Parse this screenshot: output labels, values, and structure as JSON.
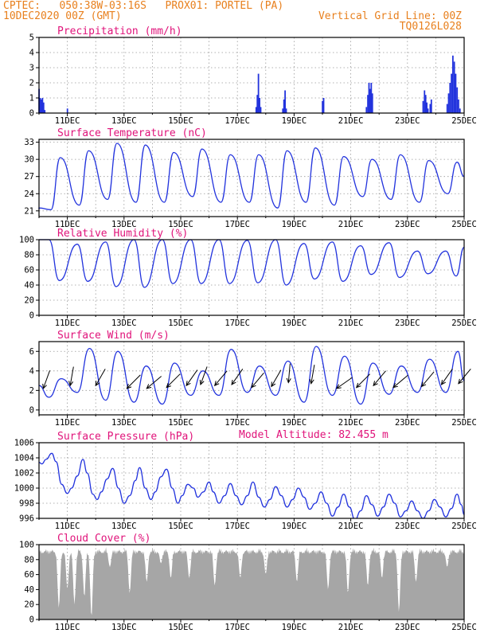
{
  "header": {
    "line1_left": "CPTEC:   050:38W-03:16S   PROX01: PORTEL (PA)",
    "line2_left": "10DEC2020 00Z (GMT)",
    "line2_right": "Vertical Grid Line: 00Z",
    "line3_right": "TQ0126L028"
  },
  "colors": {
    "header": "#e8801e",
    "title": "#e0137a",
    "series": "#2233dd",
    "cloud": "#a6a6a6",
    "arrow": "#000000",
    "grid": "#999999"
  },
  "x_axis": {
    "start": "10DEC2020 00Z",
    "end": "25DEC2020 00Z",
    "tick_labels": [
      "11DEC",
      "13DEC",
      "15DEC",
      "17DEC",
      "19DEC",
      "21DEC",
      "23DEC",
      "25DEC"
    ],
    "tick_days": [
      1,
      3,
      5,
      7,
      9,
      11,
      13,
      15
    ],
    "vertical_grid": "00Z each day"
  },
  "chart_data": [
    {
      "type": "bar",
      "id": "precip",
      "title": "Precipitation (mm/h)",
      "ylim": [
        0,
        5
      ],
      "yticks": [
        0,
        1,
        2,
        3,
        4,
        5
      ],
      "grid": true,
      "bars": [
        {
          "day": 0.0,
          "value": 1.6
        },
        {
          "day": 0.04,
          "value": 1.0
        },
        {
          "day": 0.08,
          "value": 0.9
        },
        {
          "day": 0.12,
          "value": 1.0
        },
        {
          "day": 0.16,
          "value": 0.7
        },
        {
          "day": 0.2,
          "value": 0.2
        },
        {
          "day": 1.0,
          "value": 0.3
        },
        {
          "day": 7.66,
          "value": 0.4
        },
        {
          "day": 7.7,
          "value": 1.2
        },
        {
          "day": 7.74,
          "value": 2.6
        },
        {
          "day": 7.78,
          "value": 1.0
        },
        {
          "day": 7.82,
          "value": 0.4
        },
        {
          "day": 8.6,
          "value": 0.3
        },
        {
          "day": 8.64,
          "value": 0.9
        },
        {
          "day": 8.68,
          "value": 1.5
        },
        {
          "day": 8.72,
          "value": 0.3
        },
        {
          "day": 10.0,
          "value": 0.8
        },
        {
          "day": 10.04,
          "value": 1.0
        },
        {
          "day": 11.55,
          "value": 0.4
        },
        {
          "day": 11.6,
          "value": 1.2
        },
        {
          "day": 11.64,
          "value": 2.0
        },
        {
          "day": 11.68,
          "value": 1.6
        },
        {
          "day": 11.72,
          "value": 2.0
        },
        {
          "day": 11.76,
          "value": 1.3
        },
        {
          "day": 13.55,
          "value": 0.8
        },
        {
          "day": 13.6,
          "value": 1.5
        },
        {
          "day": 13.64,
          "value": 1.2
        },
        {
          "day": 13.68,
          "value": 0.7
        },
        {
          "day": 13.72,
          "value": 0.3
        },
        {
          "day": 13.8,
          "value": 0.6
        },
        {
          "day": 13.84,
          "value": 0.9
        },
        {
          "day": 14.4,
          "value": 0.6
        },
        {
          "day": 14.45,
          "value": 1.3
        },
        {
          "day": 14.5,
          "value": 2.0
        },
        {
          "day": 14.55,
          "value": 2.6
        },
        {
          "day": 14.6,
          "value": 3.8
        },
        {
          "day": 14.65,
          "value": 3.4
        },
        {
          "day": 14.7,
          "value": 2.6
        },
        {
          "day": 14.75,
          "value": 1.7
        },
        {
          "day": 14.8,
          "value": 0.9
        },
        {
          "day": 14.85,
          "value": 0.3
        }
      ]
    },
    {
      "type": "line",
      "id": "temp",
      "title": "Surface Temperature (nC)",
      "ylim": [
        20,
        33.5
      ],
      "yticks": [
        21,
        24,
        27,
        30,
        33
      ],
      "grid": true,
      "daily_min": [
        21.2,
        22.0,
        23.0,
        22.5,
        22.5,
        23.5,
        22.5,
        22.5,
        21.5,
        22.5,
        22.0,
        23.5,
        23.0,
        22.5,
        24.0
      ],
      "daily_max": [
        30.3,
        31.5,
        32.8,
        32.5,
        31.2,
        31.8,
        30.8,
        30.8,
        31.5,
        32.0,
        30.5,
        30.0,
        30.8,
        29.8,
        29.5
      ],
      "end_value": 27.0,
      "points": []
    },
    {
      "type": "line",
      "id": "rh",
      "title": "Relative Humidity (%)",
      "ylim": [
        0,
        100
      ],
      "yticks": [
        0,
        20,
        40,
        60,
        80,
        100
      ],
      "grid": true,
      "daily_max": [
        100,
        94,
        97,
        100,
        100,
        100,
        100,
        99,
        100,
        95,
        97,
        92,
        96,
        85,
        85
      ],
      "daily_min": [
        46,
        45,
        38,
        37,
        42,
        42,
        42,
        43,
        40,
        48,
        45,
        54,
        50,
        55,
        52
      ],
      "end_value": 90,
      "points": []
    },
    {
      "type": "line",
      "id": "wind",
      "title": "Surface Wind (m/s)",
      "ylim": [
        -0.5,
        7
      ],
      "yticks": [
        0,
        2,
        4,
        6
      ],
      "grid": true,
      "daily_max": [
        3.2,
        6.3,
        6.0,
        4.5,
        4.8,
        4.0,
        6.2,
        4.5,
        5.0,
        6.5,
        5.5,
        4.8,
        4.5,
        5.2,
        6.0
      ],
      "daily_min": [
        1.3,
        1.8,
        1.0,
        0.8,
        0.6,
        1.5,
        1.5,
        1.8,
        1.5,
        0.8,
        1.5,
        0.6,
        1.6,
        1.8,
        1.8
      ],
      "end_value": 3.0,
      "arrows": [
        {
          "day": 0.15,
          "y": 2.2,
          "dir_deg": 70
        },
        {
          "day": 1.1,
          "y": 2.5,
          "dir_deg": 80
        },
        {
          "day": 2.0,
          "y": 2.5,
          "dir_deg": 60
        },
        {
          "day": 3.1,
          "y": 2.2,
          "dir_deg": 45
        },
        {
          "day": 3.8,
          "y": 2.2,
          "dir_deg": 40
        },
        {
          "day": 4.5,
          "y": 2.3,
          "dir_deg": 45
        },
        {
          "day": 5.2,
          "y": 2.5,
          "dir_deg": 55
        },
        {
          "day": 5.7,
          "y": 2.6,
          "dir_deg": 70
        },
        {
          "day": 6.2,
          "y": 2.5,
          "dir_deg": 50
        },
        {
          "day": 6.8,
          "y": 2.6,
          "dir_deg": 55
        },
        {
          "day": 7.5,
          "y": 2.3,
          "dir_deg": 50
        },
        {
          "day": 8.2,
          "y": 2.4,
          "dir_deg": 60
        },
        {
          "day": 8.8,
          "y": 2.8,
          "dir_deg": 85
        },
        {
          "day": 9.6,
          "y": 2.7,
          "dir_deg": 80
        },
        {
          "day": 10.5,
          "y": 2.2,
          "dir_deg": 35
        },
        {
          "day": 11.2,
          "y": 2.3,
          "dir_deg": 45
        },
        {
          "day": 11.8,
          "y": 2.5,
          "dir_deg": 50
        },
        {
          "day": 12.5,
          "y": 2.3,
          "dir_deg": 40
        },
        {
          "day": 13.5,
          "y": 2.4,
          "dir_deg": 50
        },
        {
          "day": 14.2,
          "y": 2.6,
          "dir_deg": 55
        },
        {
          "day": 14.8,
          "y": 2.7,
          "dir_deg": 50
        }
      ],
      "points": []
    },
    {
      "type": "line",
      "id": "pres",
      "title": "Surface Pressure (hPa)",
      "annotation": "Model Altitude: 82.455 m",
      "ylim": [
        996,
        1006
      ],
      "yticks": [
        996,
        998,
        1000,
        1002,
        1004,
        1006
      ],
      "grid": true,
      "points": [
        [
          0.0,
          1003.4
        ],
        [
          0.1,
          1003.2
        ],
        [
          0.25,
          1003.8
        ],
        [
          0.45,
          1004.6
        ],
        [
          0.6,
          1003.5
        ],
        [
          0.8,
          1000.5
        ],
        [
          1.0,
          999.3
        ],
        [
          1.15,
          1000.0
        ],
        [
          1.35,
          1001.6
        ],
        [
          1.55,
          1003.8
        ],
        [
          1.7,
          1002.0
        ],
        [
          1.9,
          999.2
        ],
        [
          2.05,
          998.5
        ],
        [
          2.2,
          999.5
        ],
        [
          2.4,
          1001.2
        ],
        [
          2.6,
          1002.6
        ],
        [
          2.8,
          1000.0
        ],
        [
          3.0,
          998.0
        ],
        [
          3.2,
          999.0
        ],
        [
          3.4,
          1001.0
        ],
        [
          3.55,
          1002.7
        ],
        [
          3.75,
          1000.0
        ],
        [
          3.95,
          998.5
        ],
        [
          4.1,
          999.5
        ],
        [
          4.3,
          1001.5
        ],
        [
          4.5,
          1002.5
        ],
        [
          4.7,
          1000.0
        ],
        [
          4.9,
          998.0
        ],
        [
          5.05,
          999.0
        ],
        [
          5.25,
          1000.5
        ],
        [
          5.45,
          1000.0
        ],
        [
          5.6,
          998.8
        ],
        [
          5.8,
          999.5
        ],
        [
          6.0,
          1000.8
        ],
        [
          6.15,
          999.5
        ],
        [
          6.35,
          998.0
        ],
        [
          6.55,
          999.0
        ],
        [
          6.75,
          1000.6
        ],
        [
          6.95,
          999.0
        ],
        [
          7.15,
          997.8
        ],
        [
          7.35,
          999.0
        ],
        [
          7.55,
          1000.8
        ],
        [
          7.75,
          998.8
        ],
        [
          7.95,
          997.5
        ],
        [
          8.15,
          998.5
        ],
        [
          8.35,
          1000.2
        ],
        [
          8.55,
          999.0
        ],
        [
          8.75,
          997.5
        ],
        [
          8.95,
          998.5
        ],
        [
          9.15,
          1000.0
        ],
        [
          9.35,
          998.8
        ],
        [
          9.55,
          997.2
        ],
        [
          9.75,
          998.0
        ],
        [
          9.95,
          999.5
        ],
        [
          10.15,
          998.0
        ],
        [
          10.35,
          996.3
        ],
        [
          10.55,
          997.5
        ],
        [
          10.75,
          999.2
        ],
        [
          10.95,
          997.5
        ],
        [
          11.15,
          995.8
        ],
        [
          11.35,
          997.0
        ],
        [
          11.55,
          999.0
        ],
        [
          11.75,
          997.8
        ],
        [
          11.95,
          996.3
        ],
        [
          12.15,
          997.5
        ],
        [
          12.35,
          999.2
        ],
        [
          12.55,
          998.0
        ],
        [
          12.75,
          996.2
        ],
        [
          12.95,
          997.0
        ],
        [
          13.15,
          998.3
        ],
        [
          13.35,
          997.0
        ],
        [
          13.55,
          996.0
        ],
        [
          13.75,
          997.0
        ],
        [
          13.95,
          998.5
        ],
        [
          14.15,
          997.5
        ],
        [
          14.35,
          996.2
        ],
        [
          14.55,
          997.3
        ],
        [
          14.75,
          999.2
        ],
        [
          14.9,
          997.8
        ],
        [
          15.0,
          996.5
        ]
      ]
    },
    {
      "type": "area",
      "id": "cloud",
      "title": "Cloud Cover (%)",
      "ylim": [
        0,
        100
      ],
      "yticks": [
        0,
        20,
        40,
        60,
        80,
        100
      ],
      "grid": true,
      "dips": [
        {
          "day": 0.7,
          "value": 15
        },
        {
          "day": 1.0,
          "value": 40
        },
        {
          "day": 1.25,
          "value": 20
        },
        {
          "day": 1.6,
          "value": 30
        },
        {
          "day": 1.85,
          "value": 3
        },
        {
          "day": 2.5,
          "value": 70
        },
        {
          "day": 3.2,
          "value": 35
        },
        {
          "day": 3.8,
          "value": 50
        },
        {
          "day": 4.3,
          "value": 75
        },
        {
          "day": 4.65,
          "value": 55
        },
        {
          "day": 5.3,
          "value": 55
        },
        {
          "day": 6.2,
          "value": 45
        },
        {
          "day": 7.1,
          "value": 55
        },
        {
          "day": 8.0,
          "value": 60
        },
        {
          "day": 9.1,
          "value": 50
        },
        {
          "day": 10.2,
          "value": 40
        },
        {
          "day": 10.9,
          "value": 35
        },
        {
          "day": 11.6,
          "value": 45
        },
        {
          "day": 12.1,
          "value": 55
        },
        {
          "day": 12.7,
          "value": 10
        },
        {
          "day": 13.3,
          "value": 50
        },
        {
          "day": 14.4,
          "value": 70
        }
      ],
      "base": 97
    }
  ]
}
